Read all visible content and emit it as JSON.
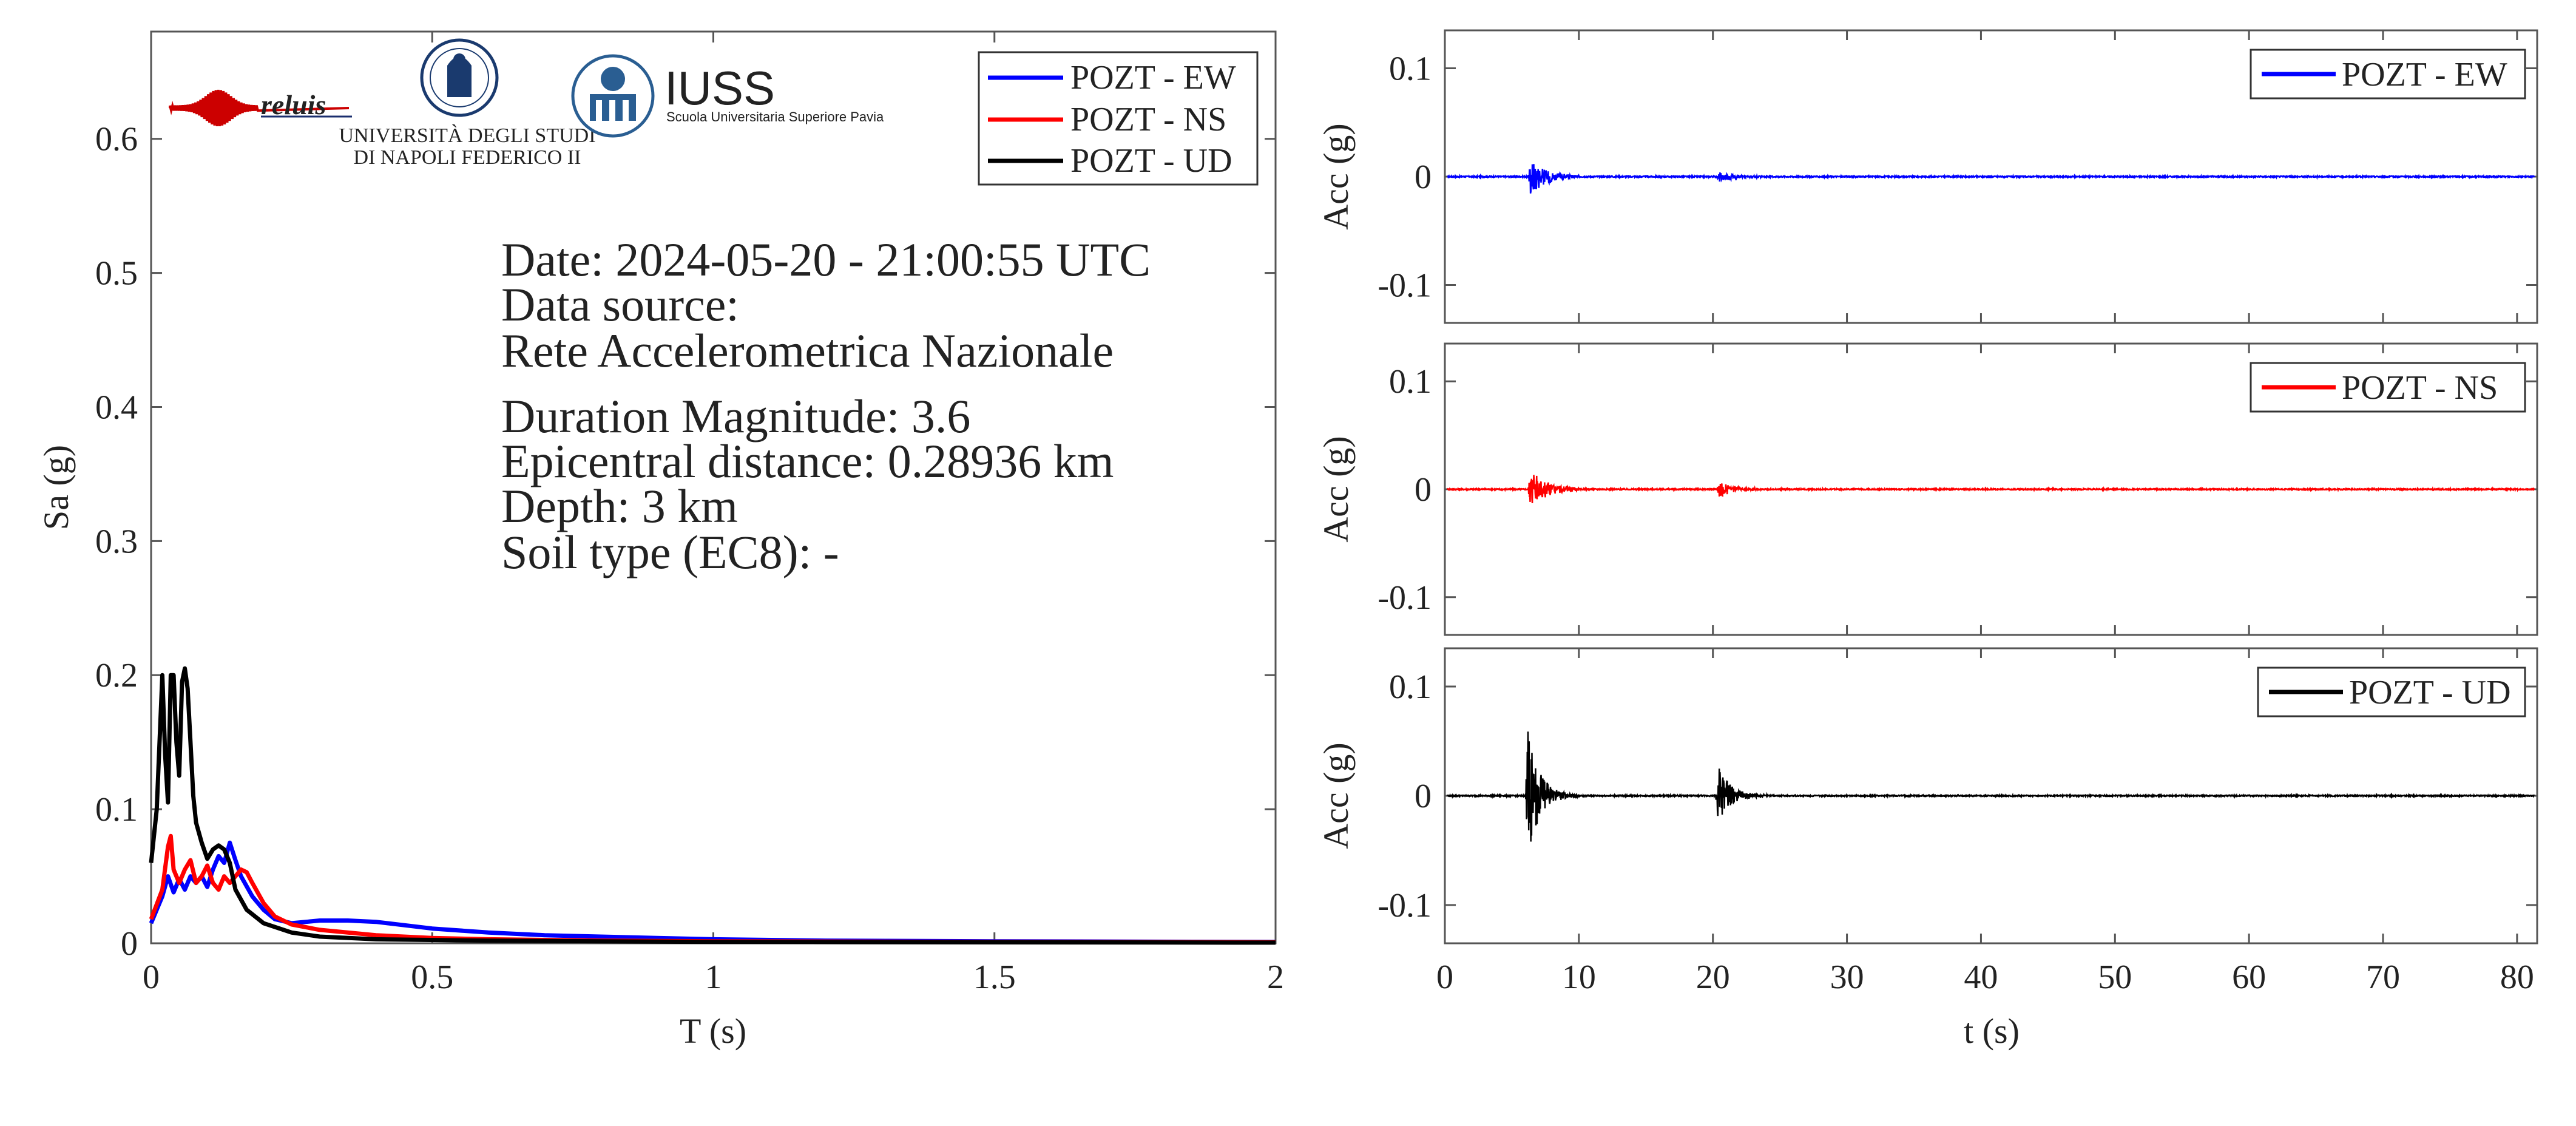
{
  "chart_data": [
    {
      "type": "line",
      "xlabel": "T (s)",
      "ylabel": "Sa (g)",
      "xlim": [
        0,
        2
      ],
      "ylim": [
        0,
        0.68
      ],
      "xticks": [
        0,
        0.5,
        1,
        1.5,
        2
      ],
      "xtick_labels": [
        "0",
        "0.5",
        "1",
        "1.5",
        "2"
      ],
      "yticks": [
        0,
        0.1,
        0.2,
        0.3,
        0.4,
        0.5,
        0.6
      ],
      "ytick_labels": [
        "0",
        "0.1",
        "0.2",
        "0.3",
        "0.4",
        "0.5",
        "0.6"
      ],
      "grid": false,
      "legend_position": "top-right",
      "series": [
        {
          "name": "POZT - EW",
          "color": "#0000ff",
          "x": [
            0,
            0.02,
            0.03,
            0.04,
            0.05,
            0.06,
            0.07,
            0.08,
            0.09,
            0.1,
            0.11,
            0.12,
            0.13,
            0.14,
            0.15,
            0.16,
            0.18,
            0.2,
            0.22,
            0.25,
            0.3,
            0.35,
            0.4,
            0.5,
            0.6,
            0.7,
            0.8,
            0.9,
            1,
            1.2,
            1.5,
            2
          ],
          "y": [
            0.015,
            0.035,
            0.05,
            0.038,
            0.048,
            0.04,
            0.05,
            0.045,
            0.05,
            0.042,
            0.055,
            0.065,
            0.06,
            0.075,
            0.062,
            0.05,
            0.035,
            0.025,
            0.018,
            0.015,
            0.017,
            0.017,
            0.016,
            0.011,
            0.008,
            0.006,
            0.005,
            0.004,
            0.003,
            0.002,
            0.0015,
            0.001
          ]
        },
        {
          "name": "POZT - NS",
          "color": "#ff0000",
          "x": [
            0,
            0.02,
            0.03,
            0.035,
            0.04,
            0.05,
            0.06,
            0.07,
            0.08,
            0.09,
            0.1,
            0.11,
            0.12,
            0.13,
            0.14,
            0.15,
            0.16,
            0.17,
            0.18,
            0.2,
            0.22,
            0.25,
            0.3,
            0.4,
            0.5,
            0.6,
            0.8,
            1,
            1.5,
            2
          ],
          "y": [
            0.018,
            0.04,
            0.072,
            0.08,
            0.055,
            0.045,
            0.055,
            0.062,
            0.045,
            0.05,
            0.058,
            0.045,
            0.04,
            0.05,
            0.045,
            0.05,
            0.055,
            0.053,
            0.045,
            0.03,
            0.02,
            0.014,
            0.01,
            0.006,
            0.004,
            0.003,
            0.002,
            0.0015,
            0.001,
            0.0008
          ]
        },
        {
          "name": "POZT - UD",
          "color": "#000000",
          "x": [
            0,
            0.01,
            0.02,
            0.025,
            0.03,
            0.035,
            0.04,
            0.045,
            0.05,
            0.055,
            0.06,
            0.065,
            0.07,
            0.075,
            0.08,
            0.09,
            0.1,
            0.11,
            0.12,
            0.13,
            0.14,
            0.15,
            0.17,
            0.2,
            0.25,
            0.3,
            0.4,
            0.6,
            1,
            2
          ],
          "y": [
            0.06,
            0.1,
            0.2,
            0.14,
            0.105,
            0.2,
            0.2,
            0.15,
            0.125,
            0.195,
            0.205,
            0.19,
            0.15,
            0.11,
            0.09,
            0.075,
            0.063,
            0.07,
            0.073,
            0.07,
            0.06,
            0.04,
            0.025,
            0.015,
            0.008,
            0.005,
            0.003,
            0.002,
            0.001,
            0.0005
          ]
        }
      ]
    },
    {
      "type": "line",
      "xlabel": "",
      "ylabel": "Acc (g)",
      "xlim": [
        0,
        81.5
      ],
      "ylim": [
        -0.135,
        0.135
      ],
      "yticks": [
        -0.1,
        0,
        0.1
      ],
      "ytick_labels": [
        "-0.1",
        "0",
        "0.1"
      ],
      "legend_position": "top-right",
      "series": [
        {
          "name": "POZT - EW",
          "color": "#0000ff",
          "bursts": [
            {
              "start": 6.2,
              "peak_time": 6.4,
              "amp": 0.017,
              "decay": 1.2,
              "end": 10
            },
            {
              "start": 20.3,
              "peak_time": 20.5,
              "amp": 0.005,
              "decay": 1.0,
              "end": 25
            }
          ]
        }
      ]
    },
    {
      "type": "line",
      "xlabel": "",
      "ylabel": "Acc (g)",
      "xlim": [
        0,
        81.5
      ],
      "ylim": [
        -0.135,
        0.135
      ],
      "yticks": [
        -0.1,
        0,
        0.1
      ],
      "ytick_labels": [
        "-0.1",
        "0",
        "0.1"
      ],
      "legend_position": "top-right",
      "series": [
        {
          "name": "POZT - NS",
          "color": "#ff0000",
          "bursts": [
            {
              "start": 6.2,
              "peak_time": 6.4,
              "amp": 0.018,
              "decay": 1.3,
              "end": 10
            },
            {
              "start": 20.3,
              "peak_time": 20.5,
              "amp": 0.008,
              "decay": 1.0,
              "end": 25
            }
          ]
        }
      ]
    },
    {
      "type": "line",
      "xlabel": "t (s)",
      "ylabel": "Acc (g)",
      "xlim": [
        0,
        81.5
      ],
      "ylim": [
        -0.135,
        0.135
      ],
      "xticks": [
        0,
        10,
        20,
        30,
        40,
        50,
        60,
        70,
        80
      ],
      "xtick_labels": [
        "0",
        "10",
        "20",
        "30",
        "40",
        "50",
        "60",
        "70",
        "80"
      ],
      "yticks": [
        -0.1,
        0,
        0.1
      ],
      "ytick_labels": [
        "-0.1",
        "0",
        "0.1"
      ],
      "legend_position": "top-right",
      "series": [
        {
          "name": "POZT - UD",
          "color": "#000000",
          "bursts": [
            {
              "start": 6.0,
              "peak_time": 6.2,
              "amp": 0.06,
              "decay": 0.9,
              "end": 10
            },
            {
              "start": 20.2,
              "peak_time": 20.4,
              "amp": 0.028,
              "decay": 0.9,
              "end": 24.5
            }
          ]
        }
      ]
    }
  ],
  "event_info": {
    "date": "Date: 2024-05-20 - 21:00:55 UTC",
    "source_label": "Data source:",
    "source_name": "Rete Accelerometrica Nazionale",
    "magnitude": "Duration Magnitude: 3.6",
    "distance": "Epicentral distance: 0.28936 km",
    "depth": "Depth: 3 km",
    "soil": "Soil type (EC8): -"
  },
  "logos": {
    "reluis": "reluis",
    "unina_line1": "UNIVERSITÀ DEGLI STUDI",
    "unina_line2": "DI NAPOLI FEDERICO II",
    "iuss": "IUSS",
    "iuss_sub": "Scuola Universitaria Superiore Pavia"
  }
}
